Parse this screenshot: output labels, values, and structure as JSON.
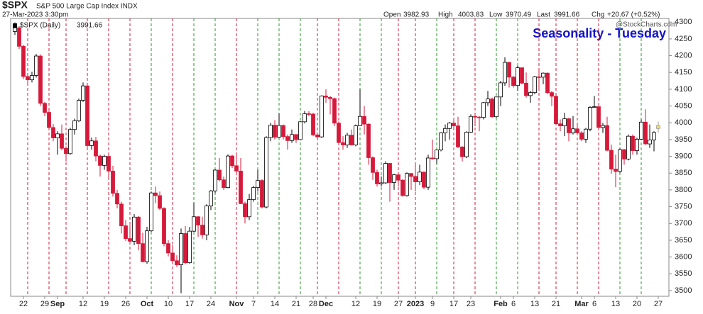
{
  "header": {
    "symbol": "$SPX",
    "name": "S&P 500 Large Cap Index INDX",
    "date": "27-Mar-2023 3:30pm",
    "open_label": "Open",
    "high_label": "High",
    "low_label": "Low",
    "last_label": "Last",
    "chg_label": "Chg",
    "chg": "+20.67 (+0.52%)",
    "credit": "@StockCharts.com"
  },
  "chart_data": {
    "type": "candlestick",
    "title": "Seasonality - Tuesday",
    "series_label": "$SPX (Daily)",
    "open": [
      4272,
      4283,
      4228,
      4138,
      4128,
      4141,
      4199,
      4058,
      4031,
      3986,
      3955,
      3967,
      3924,
      3908,
      3980,
      4006,
      4067,
      4110,
      3932,
      3946,
      3901,
      3873,
      3900,
      3856,
      3790,
      3758,
      3693,
      3655,
      3647,
      3719,
      3640,
      3586,
      3678,
      3791,
      3783,
      3745,
      3640,
      3612,
      3589,
      3577,
      3670,
      3583,
      3677,
      3720,
      3695,
      3666,
      3752,
      3797,
      3859,
      3830,
      3807,
      3901,
      3872,
      3856,
      3759,
      3720,
      3771,
      3807,
      3828,
      3749,
      3956,
      3993,
      3957,
      3992,
      3959,
      3947,
      3965,
      3950,
      4003,
      4027,
      4026,
      3964,
      3958,
      4080,
      4076,
      4072,
      3999,
      3941,
      3934,
      3963,
      3934,
      3991,
      4019,
      3996,
      3896,
      3852,
      3818,
      3821,
      3879,
      3822,
      3845,
      3829,
      3783,
      3849,
      3840,
      3824,
      3853,
      3808,
      3895,
      3893,
      3919,
      3970,
      3983,
      3999,
      3991,
      3928,
      3899,
      3972,
      4019,
      4017,
      4016,
      4060,
      4071,
      4018,
      4077,
      4119,
      4180,
      4136,
      4111,
      4164,
      4118,
      4081,
      4090,
      4137,
      4136,
      4148,
      4090,
      4079,
      3997,
      3991,
      4012,
      3970,
      3982,
      3970,
      3951,
      3981,
      4046,
      4048,
      3986,
      3992,
      3918,
      3862,
      3855,
      3920,
      3892,
      3960,
      3917,
      3951,
      4002,
      3937,
      3949,
      3982.93
    ],
    "high": [
      4299,
      4288,
      4232,
      4145,
      4152,
      4205,
      4204,
      4062,
      4044,
      3996,
      3975,
      3995,
      3930,
      3985,
      4012,
      4072,
      4120,
      4115,
      3956,
      3958,
      3905,
      3905,
      3905,
      3872,
      3800,
      3765,
      3710,
      3695,
      3728,
      3722,
      3672,
      3690,
      3795,
      3810,
      3795,
      3748,
      3650,
      3635,
      3605,
      3685,
      3692,
      3690,
      3762,
      3722,
      3720,
      3757,
      3800,
      3862,
      3895,
      3840,
      3906,
      3905,
      3912,
      3895,
      3765,
      3788,
      3812,
      3860,
      3832,
      3960,
      4000,
      4008,
      4028,
      3995,
      3965,
      3980,
      3965,
      4005,
      4035,
      4035,
      4030,
      3970,
      4082,
      4100,
      4080,
      4075,
      4004,
      3960,
      3970,
      3980,
      3995,
      4100,
      4050,
      3998,
      3900,
      3860,
      3840,
      3885,
      3880,
      3848,
      3850,
      3832,
      3852,
      3850,
      3880,
      3875,
      3855,
      3905,
      3950,
      3920,
      3972,
      3995,
      4002,
      4015,
      4018,
      3930,
      3975,
      4025,
      4025,
      4020,
      4062,
      4095,
      4075,
      4078,
      4125,
      4195,
      4182,
      4140,
      4170,
      4165,
      4150,
      4095,
      4140,
      4155,
      4150,
      4150,
      4095,
      4082,
      4010,
      4030,
      4015,
      4020,
      3995,
      3975,
      3985,
      4050,
      4080,
      4050,
      4000,
      4018,
      3935,
      3905,
      3925,
      3922,
      3965,
      3965,
      3956,
      4010,
      4040,
      3995,
      3975,
      4003.83
    ],
    "low": [
      4262,
      4220,
      4130,
      4118,
      4120,
      4135,
      4050,
      4020,
      3978,
      3945,
      3905,
      3918,
      3885,
      3905,
      3965,
      4002,
      4062,
      3925,
      3920,
      3885,
      3840,
      3860,
      3830,
      3780,
      3745,
      3670,
      3648,
      3640,
      3635,
      3620,
      3584,
      3580,
      3675,
      3760,
      3740,
      3632,
      3602,
      3585,
      3570,
      3492,
      3578,
      3580,
      3675,
      3660,
      3655,
      3650,
      3740,
      3790,
      3825,
      3800,
      3805,
      3865,
      3850,
      3758,
      3700,
      3710,
      3765,
      3795,
      3745,
      3745,
      3945,
      3950,
      3955,
      3950,
      3920,
      3940,
      3940,
      3948,
      3998,
      4020,
      3960,
      3950,
      3955,
      4060,
      4025,
      3990,
      3935,
      3920,
      3925,
      3932,
      3930,
      3990,
      3965,
      3875,
      3830,
      3810,
      3810,
      3818,
      3765,
      3800,
      3810,
      3780,
      3780,
      3800,
      3795,
      3815,
      3802,
      3800,
      3890,
      3878,
      3915,
      3945,
      3950,
      3985,
      3925,
      3885,
      3895,
      3970,
      3990,
      3975,
      4010,
      4050,
      4015,
      4015,
      4050,
      4110,
      4105,
      4105,
      4095,
      4115,
      4075,
      4060,
      4085,
      4095,
      4115,
      4085,
      4050,
      3995,
      3975,
      3960,
      3945,
      3965,
      3965,
      3945,
      3940,
      3975,
      4045,
      3980,
      3970,
      3915,
      3848,
      3808,
      3850,
      3875,
      3888,
      3905,
      3905,
      3950,
      3935,
      3925,
      3915,
      3970.49
    ],
    "close": [
      4283,
      4228,
      4138,
      4128,
      4141,
      4199,
      4058,
      4031,
      3986,
      3955,
      3967,
      3924,
      3908,
      3980,
      4006,
      4067,
      4110,
      3932,
      3946,
      3901,
      3873,
      3900,
      3856,
      3790,
      3758,
      3693,
      3655,
      3647,
      3719,
      3640,
      3586,
      3678,
      3791,
      3783,
      3745,
      3640,
      3612,
      3589,
      3577,
      3670,
      3583,
      3677,
      3720,
      3695,
      3666,
      3752,
      3797,
      3859,
      3830,
      3807,
      3901,
      3872,
      3856,
      3759,
      3720,
      3771,
      3807,
      3828,
      3749,
      3956,
      3993,
      3957,
      3992,
      3959,
      3947,
      3965,
      3950,
      4003,
      4027,
      4026,
      3964,
      3958,
      4080,
      4076,
      4072,
      3999,
      3941,
      3934,
      3963,
      3934,
      3991,
      4019,
      3996,
      3896,
      3852,
      3818,
      3821,
      3879,
      3822,
      3845,
      3829,
      3783,
      3849,
      3840,
      3824,
      3853,
      3808,
      3895,
      3893,
      3919,
      3970,
      3983,
      3999,
      3991,
      3928,
      3899,
      3972,
      4019,
      4017,
      4016,
      4060,
      4071,
      4018,
      4077,
      4119,
      4180,
      4136,
      4111,
      4164,
      4118,
      4081,
      4090,
      4137,
      4136,
      4148,
      4090,
      4079,
      3997,
      3991,
      4012,
      3970,
      3982,
      3970,
      3951,
      3981,
      4046,
      4048,
      3986,
      3992,
      3918,
      3862,
      3855,
      3920,
      3892,
      3960,
      3917,
      3951,
      4002,
      3937,
      3949,
      3971,
      3991.66
    ],
    "up_color": "#000000",
    "down_color": "#d6193a",
    "last_color": "#f2e34a",
    "title_color": "#1414c8",
    "ylim": [
      3483,
      4311
    ],
    "yticks": [
      3500,
      3550,
      3600,
      3650,
      3700,
      3750,
      3800,
      3850,
      3900,
      3950,
      4000,
      4050,
      4100,
      4150,
      4200,
      4250,
      4300
    ],
    "xlim": [
      -1,
      153.5
    ],
    "xticks": [
      {
        "value": 2,
        "label": "22"
      },
      {
        "value": 7,
        "label": "29"
      },
      {
        "value": 10,
        "label": "Sep"
      },
      {
        "value": 16,
        "label": "12"
      },
      {
        "value": 21,
        "label": "19"
      },
      {
        "value": 26,
        "label": "26"
      },
      {
        "value": 31,
        "label": "Oct"
      },
      {
        "value": 36,
        "label": "10"
      },
      {
        "value": 41,
        "label": "17"
      },
      {
        "value": 46,
        "label": "24"
      },
      {
        "value": 52,
        "label": "Nov"
      },
      {
        "value": 56,
        "label": "7"
      },
      {
        "value": 61,
        "label": "14"
      },
      {
        "value": 66,
        "label": "21"
      },
      {
        "value": 70,
        "label": "28"
      },
      {
        "value": 73,
        "label": "Dec"
      },
      {
        "value": 80,
        "label": "12"
      },
      {
        "value": 85,
        "label": "19"
      },
      {
        "value": 90,
        "label": "27"
      },
      {
        "value": 94,
        "label": "2023"
      },
      {
        "value": 98,
        "label": "9"
      },
      {
        "value": 103,
        "label": "17"
      },
      {
        "value": 107,
        "label": "23"
      },
      {
        "value": 114,
        "label": "Feb"
      },
      {
        "value": 117,
        "label": "6"
      },
      {
        "value": 122,
        "label": "13"
      },
      {
        "value": 127,
        "label": "21"
      },
      {
        "value": 133,
        "label": "Mar"
      },
      {
        "value": 136,
        "label": "6"
      },
      {
        "value": 141,
        "label": "13"
      },
      {
        "value": 146,
        "label": "20"
      },
      {
        "value": 151,
        "label": "27"
      }
    ]
  }
}
